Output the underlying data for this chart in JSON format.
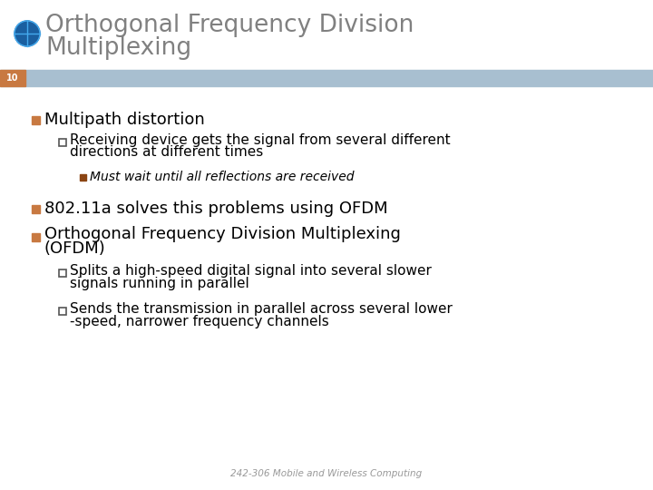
{
  "title_line1": "Orthogonal Frequency Division",
  "title_line2": "Multiplexing",
  "slide_number": "10",
  "header_bar_color": "#a8bfd0",
  "slide_number_bg": "#c87941",
  "background_color": "#ffffff",
  "title_color": "#808080",
  "body_text_color": "#000000",
  "footer_text": "242-306 Mobile and Wireless Computing",
  "footer_color": "#999999",
  "bullet1": "Multipath distortion",
  "sub_bullet1a": "Receiving device gets the signal from several different",
  "sub_bullet1b": "directions at different times",
  "sub_sub_bullet1": "Must wait until all reflections are received",
  "bullet2": "802.11a solves this problems using OFDM",
  "bullet3a": "Orthogonal Frequency Division Multiplexing",
  "bullet3b": "(OFDM)",
  "sub_bullet3a1": "Splits a high-speed digital signal into several slower",
  "sub_bullet3a2": "signals running in parallel",
  "sub_bullet3b1": "Sends the transmission in parallel across several lower",
  "sub_bullet3b2": "-speed, narrower frequency channels",
  "bullet1_sq_color": "#c87941",
  "bullet2_sq_color": "#c87941",
  "bullet3_sq_color": "#c87941",
  "sub_bullet_sq_edge": "#555555",
  "sub_sub_bullet_sq_color": "#8B4513"
}
